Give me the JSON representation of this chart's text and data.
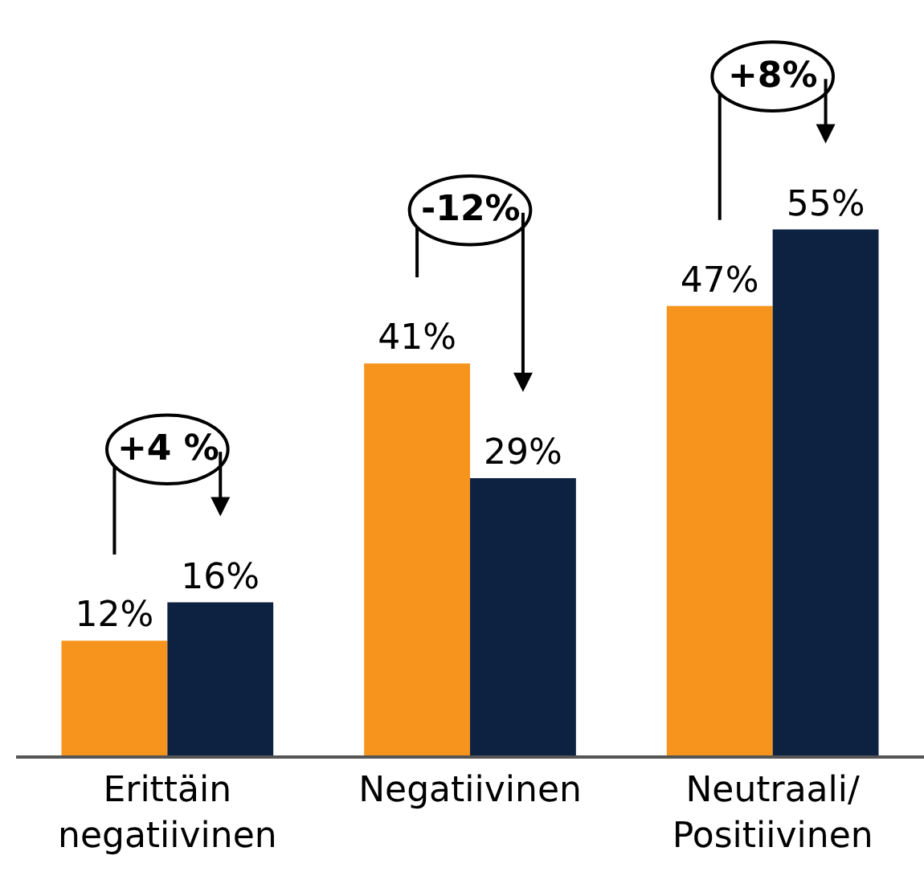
{
  "chart_data": {
    "type": "bar",
    "categories": [
      "Erittäin\nnegatiivinen",
      "Negatiivinen",
      "Neutraali/\nPositiivinen"
    ],
    "series": [
      {
        "color": "#f7941d",
        "values": [
          12,
          41,
          47
        ],
        "value_labels": [
          "12%",
          "41%",
          "47%"
        ]
      },
      {
        "color": "#0d2140",
        "values": [
          16,
          29,
          55
        ],
        "value_labels": [
          "16%",
          "29%",
          "55%"
        ]
      }
    ],
    "ylim": [
      0,
      79
    ],
    "tick_labels": "x",
    "annotations": [
      "+4 %",
      "-12%",
      "+8%"
    ]
  }
}
